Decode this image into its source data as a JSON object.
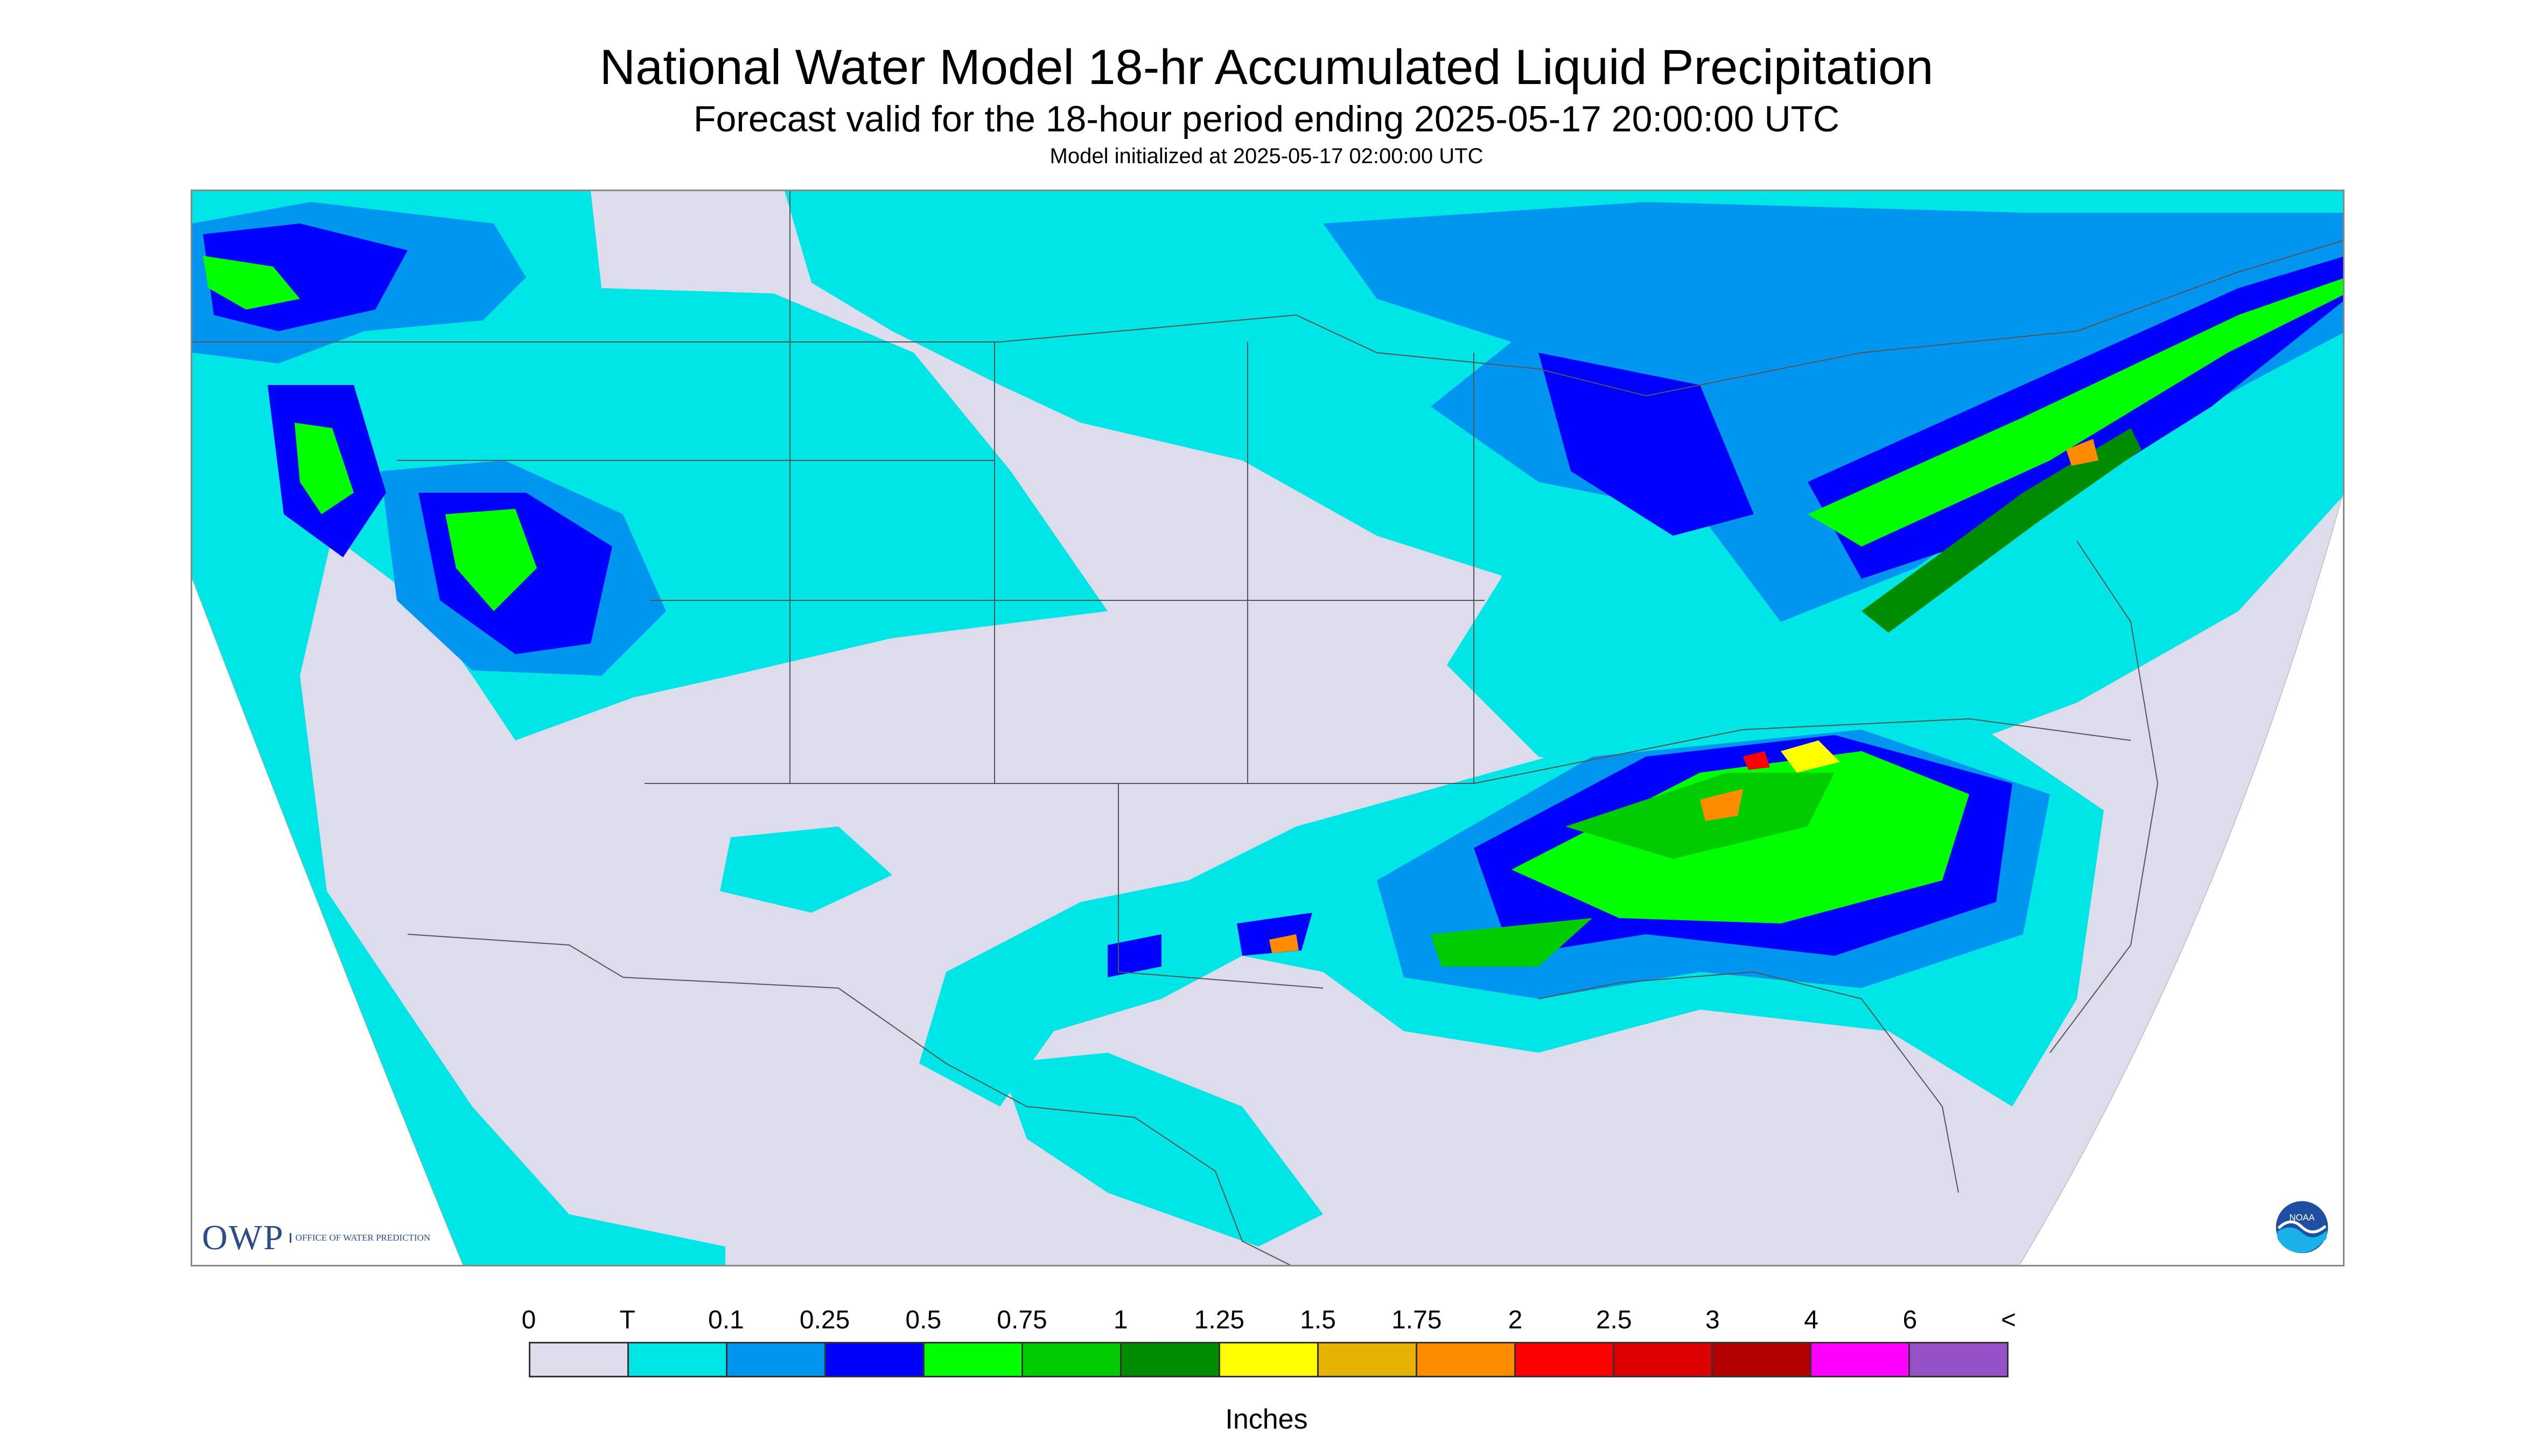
{
  "header": {
    "title": "National Water Model 18-hr Accumulated Liquid Precipitation",
    "subtitle": "Forecast valid for the 18-hour period ending 2025-05-17 20:00:00 UTC",
    "init_line": "Model initialized at 2025-05-17 02:00:00 UTC"
  },
  "map": {
    "region": "Contiguous United States (CONUS) with parts of Canada and Mexico",
    "background_outside_domain": "#ffffff",
    "no_precip_color": "#dcdcec",
    "boundary_color": "#555555",
    "precip_areas": [
      {
        "name": "pacific-northwest-band",
        "max_inches": "1.25"
      },
      {
        "name": "northern-great-basin-band",
        "max_inches": "1"
      },
      {
        "name": "great-lakes-band",
        "max_inches": "0.75"
      },
      {
        "name": "northeast-canada-band",
        "max_inches": "2"
      },
      {
        "name": "ohio-tennessee-valley-core",
        "max_inches": "2.5"
      },
      {
        "name": "southeast-band",
        "max_inches": "1.75"
      },
      {
        "name": "southern-plains-cells",
        "max_inches": "2"
      }
    ],
    "logos": {
      "owp_abbrev": "OWP",
      "owp_full": "OFFICE OF WATER PREDICTION",
      "noaa": "NOAA"
    }
  },
  "legend": {
    "labels": [
      "0",
      "T",
      "0.1",
      "0.25",
      "0.5",
      "0.75",
      "1",
      "1.25",
      "1.5",
      "1.75",
      "2",
      "2.5",
      "3",
      "4",
      "6",
      "<"
    ],
    "colors": [
      "#dcdcec",
      "#00e6e6",
      "#0096f0",
      "#0000ff",
      "#00ff00",
      "#00cd00",
      "#008c00",
      "#ffff00",
      "#e6b400",
      "#ff8c00",
      "#ff0000",
      "#dc0000",
      "#b40000",
      "#ff00ff",
      "#9650c8"
    ],
    "units": "Inches"
  }
}
